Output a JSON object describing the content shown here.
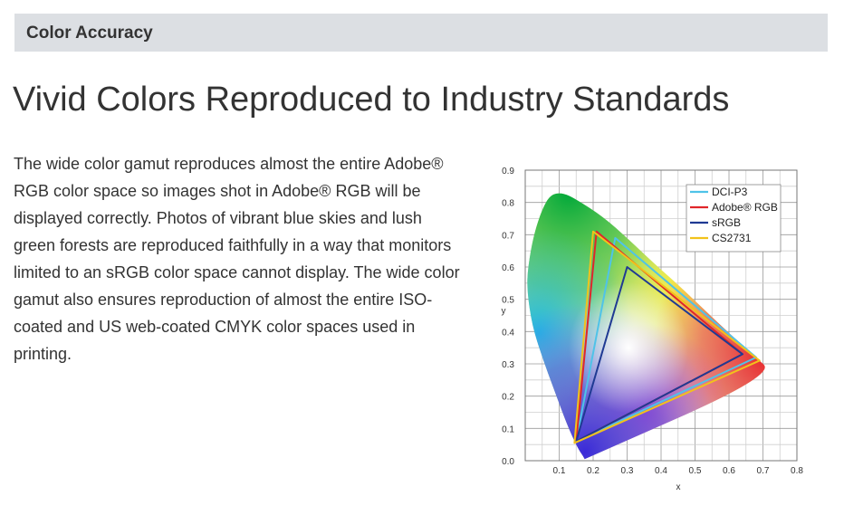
{
  "section": {
    "title": "Color Accuracy"
  },
  "headline": "Vivid Colors Reproduced to Industry Standards",
  "body_text": "The wide color gamut reproduces almost the entire Adobe® RGB color space so images shot in Adobe® RGB will be displayed correctly. Photos of vibrant blue skies and lush green forests are reproduced faithfully in a  way that monitors limited to an sRGB color space cannot display. The wide color gamut also ensures reproduction of almost the entire ISO-coated and US web-coated CMYK color spaces used in printing.",
  "chart_data": {
    "type": "scatter",
    "xlabel": "x",
    "ylabel": "y",
    "xlim": [
      0,
      0.8
    ],
    "ylim": [
      0,
      0.9
    ],
    "x_ticks": [
      "0.1",
      "0.2",
      "0.3",
      "0.4",
      "0.5",
      "0.6",
      "0.7",
      "0.8"
    ],
    "y_ticks": [
      "0.0",
      "0.1",
      "0.2",
      "0.3",
      "0.4",
      "0.5",
      "0.6",
      "0.7",
      "0.8",
      "0.9"
    ],
    "grid": true,
    "legend_position": "top-right",
    "locus": [
      [
        0.175,
        0.005
      ],
      [
        0.17,
        0.015
      ],
      [
        0.16,
        0.03
      ],
      [
        0.145,
        0.06
      ],
      [
        0.12,
        0.12
      ],
      [
        0.085,
        0.22
      ],
      [
        0.05,
        0.32
      ],
      [
        0.02,
        0.42
      ],
      [
        0.005,
        0.53
      ],
      [
        0.008,
        0.6
      ],
      [
        0.025,
        0.7
      ],
      [
        0.05,
        0.78
      ],
      [
        0.075,
        0.825
      ],
      [
        0.11,
        0.83
      ],
      [
        0.15,
        0.81
      ],
      [
        0.23,
        0.755
      ],
      [
        0.3,
        0.69
      ],
      [
        0.38,
        0.61
      ],
      [
        0.45,
        0.545
      ],
      [
        0.53,
        0.465
      ],
      [
        0.6,
        0.395
      ],
      [
        0.67,
        0.33
      ],
      [
        0.735,
        0.265
      ],
      [
        0.175,
        0.005
      ]
    ],
    "series": [
      {
        "name": "DCI-P3",
        "color": "#4fc3e8",
        "points": [
          [
            0.68,
            0.32
          ],
          [
            0.265,
            0.69
          ],
          [
            0.15,
            0.06
          ]
        ]
      },
      {
        "name": "Adobe® RGB",
        "color": "#e0262a",
        "points": [
          [
            0.64,
            0.33
          ],
          [
            0.21,
            0.71
          ],
          [
            0.15,
            0.06
          ]
        ]
      },
      {
        "name": "sRGB",
        "color": "#1f3a93",
        "points": [
          [
            0.64,
            0.33
          ],
          [
            0.3,
            0.6
          ],
          [
            0.15,
            0.06
          ]
        ]
      },
      {
        "name": "CS2731",
        "color": "#f2c21b",
        "points": [
          [
            0.69,
            0.31
          ],
          [
            0.2,
            0.71
          ],
          [
            0.145,
            0.055
          ]
        ]
      }
    ]
  }
}
